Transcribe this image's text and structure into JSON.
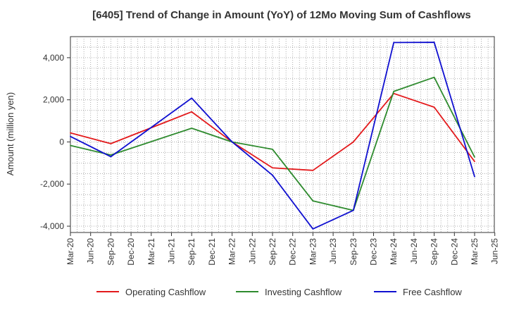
{
  "chart_data": {
    "type": "line",
    "title": "[6405]  Trend of Change in Amount (YoY) of 12Mo Moving Sum of Cashflows",
    "xlabel": "",
    "ylabel": "Amount (million yen)",
    "ylim": [
      -4300,
      5000
    ],
    "yticks": [
      4000,
      2000,
      0,
      -2000,
      -4000
    ],
    "ytick_labels": [
      "4,000",
      "2,000",
      "0",
      "-2,000",
      "-4,000"
    ],
    "categories": [
      "Mar-20",
      "Jun-20",
      "Sep-20",
      "Dec-20",
      "Mar-21",
      "Jun-21",
      "Sep-21",
      "Dec-21",
      "Mar-22",
      "Jun-22",
      "Sep-22",
      "Dec-22",
      "Mar-23",
      "Jun-23",
      "Sep-23",
      "Dec-23",
      "Mar-24",
      "Jun-24",
      "Sep-24",
      "Dec-24",
      "Mar-25",
      "Jun-25"
    ],
    "grid": true,
    "legend_position": "bottom",
    "series": [
      {
        "name": "Operating Cashflow",
        "color": "#e31a1c",
        "values": [
          430,
          null,
          -80,
          null,
          null,
          null,
          1430,
          null,
          0,
          null,
          -1230,
          null,
          -1350,
          null,
          0,
          null,
          2300,
          null,
          1650,
          null,
          -930,
          null
        ]
      },
      {
        "name": "Investing Cashflow",
        "color": "#2e8b2e",
        "values": [
          -170,
          null,
          -620,
          null,
          null,
          null,
          650,
          null,
          0,
          null,
          -350,
          null,
          -2800,
          null,
          -3250,
          null,
          2400,
          null,
          3070,
          null,
          -720,
          null
        ]
      },
      {
        "name": "Free Cashflow",
        "color": "#1010d0",
        "values": [
          260,
          null,
          -700,
          null,
          null,
          null,
          2080,
          null,
          0,
          null,
          -1580,
          null,
          -4130,
          null,
          -3250,
          null,
          4720,
          null,
          4730,
          null,
          -1650,
          null
        ]
      }
    ]
  }
}
